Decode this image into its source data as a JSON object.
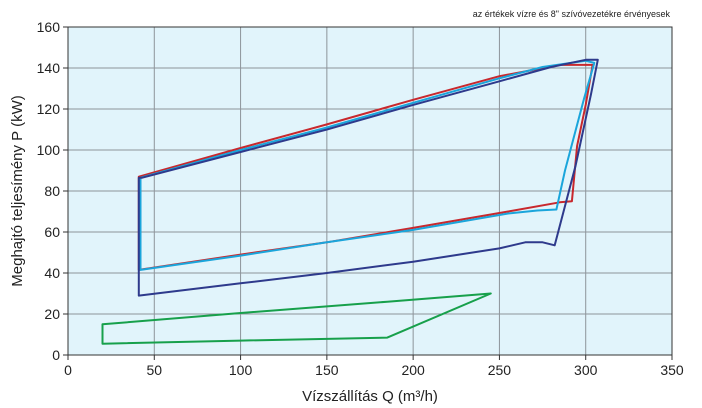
{
  "chart_data": {
    "type": "line",
    "note": "az értékek vízre és  8\"  szívóvezetékre érvényesek",
    "xlabel": "Vízszállítás Q (m³/h)",
    "ylabel": "Meghajtó teljesímény P (kW)",
    "xlim": [
      0,
      350
    ],
    "ylim": [
      0,
      160
    ],
    "xticks": [
      0,
      50,
      100,
      150,
      200,
      250,
      300,
      350
    ],
    "yticks": [
      0,
      20,
      40,
      60,
      80,
      100,
      120,
      140,
      160
    ],
    "grid": true,
    "background": "#e1f4fb",
    "series": [
      {
        "color": "#c8282d",
        "closed": true,
        "points": [
          [
            41,
            87
          ],
          [
            100,
            101
          ],
          [
            150,
            112.5
          ],
          [
            200,
            124.5
          ],
          [
            250,
            136
          ],
          [
            285,
            141.5
          ],
          [
            304,
            141.5
          ],
          [
            300,
            122
          ],
          [
            295,
            102
          ],
          [
            292,
            75
          ],
          [
            285,
            74.5
          ],
          [
            255,
            70
          ],
          [
            200,
            62
          ],
          [
            150,
            55
          ],
          [
            100,
            49
          ],
          [
            41,
            41.5
          ]
        ]
      },
      {
        "color": "#1aa5db",
        "closed": true,
        "points": [
          [
            42,
            86.5
          ],
          [
            100,
            100
          ],
          [
            150,
            111
          ],
          [
            200,
            123
          ],
          [
            250,
            135
          ],
          [
            275,
            140.5
          ],
          [
            300,
            143.5
          ],
          [
            305,
            142.5
          ],
          [
            299,
            125
          ],
          [
            288,
            90
          ],
          [
            283,
            71
          ],
          [
            272,
            70.5
          ],
          [
            255,
            69
          ],
          [
            200,
            61
          ],
          [
            150,
            55
          ],
          [
            100,
            48.5
          ],
          [
            42,
            41.5
          ]
        ]
      },
      {
        "color": "#2e3a8c",
        "closed": true,
        "points": [
          [
            43,
            86.5
          ],
          [
            100,
            99
          ],
          [
            150,
            110
          ],
          [
            200,
            122
          ],
          [
            250,
            133.5
          ],
          [
            280,
            140.5
          ],
          [
            300,
            144
          ],
          [
            307,
            144
          ],
          [
            303,
            127
          ],
          [
            294,
            92
          ],
          [
            282,
            53.5
          ],
          [
            275,
            55
          ],
          [
            265,
            55
          ],
          [
            250,
            52
          ],
          [
            200,
            45.5
          ],
          [
            150,
            40
          ],
          [
            100,
            35
          ],
          [
            41,
            29
          ],
          [
            41,
            86.5
          ]
        ]
      },
      {
        "color": "#17a04b",
        "closed": true,
        "points": [
          [
            20,
            15
          ],
          [
            100,
            20.5
          ],
          [
            185,
            26
          ],
          [
            245,
            30
          ],
          [
            185,
            8.5
          ],
          [
            100,
            7
          ],
          [
            20,
            5.5
          ]
        ]
      }
    ]
  }
}
